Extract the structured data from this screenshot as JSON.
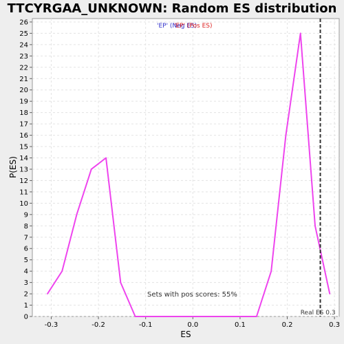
{
  "chart_data": {
    "type": "line",
    "title": "TTCYRGAA_UNKNOWN: Random ES distribution",
    "xlabel": "ES",
    "ylabel": "P(ES)",
    "xlim": [
      -0.34,
      0.31
    ],
    "ylim": [
      0,
      26.3
    ],
    "x_ticks": [
      -0.3,
      -0.2,
      -0.1,
      0.0,
      0.1,
      0.2,
      0.3
    ],
    "x_tick_labels": [
      "-0.3",
      "-0.2",
      "-0.1",
      "0.0",
      "0.1",
      "0.2",
      "0.3"
    ],
    "y_ticks": [
      0,
      1,
      2,
      3,
      4,
      5,
      6,
      7,
      8,
      9,
      10,
      11,
      12,
      13,
      14,
      15,
      16,
      17,
      18,
      19,
      20,
      21,
      22,
      23,
      24,
      25,
      26
    ],
    "grid": true,
    "legend": {
      "placement": "top-center",
      "entries": [
        {
          "label": "'EP' (Neg ES)",
          "color": "#3333cc"
        },
        {
          "label": "'EP' (Pos ES)",
          "color": "#dd2222"
        }
      ]
    },
    "series": [
      {
        "color": "#ee44ee",
        "x": [
          -0.308,
          -0.277,
          -0.246,
          -0.215,
          -0.184,
          -0.153,
          -0.122,
          -0.091,
          -0.06,
          -0.029,
          0.0,
          0.031,
          0.062,
          0.093,
          0.124,
          0.135,
          0.166,
          0.197,
          0.228,
          0.259,
          0.29
        ],
        "y": [
          2,
          4,
          9,
          13,
          14,
          3,
          0,
          0,
          0,
          0,
          0,
          0,
          0,
          0,
          0,
          0,
          4,
          16,
          25,
          8,
          2
        ]
      }
    ],
    "real_es": {
      "value": 0.27,
      "label": "Real ES 0.3",
      "line_color": "#333333"
    },
    "annotation": "Sets with pos scores: 55%"
  }
}
